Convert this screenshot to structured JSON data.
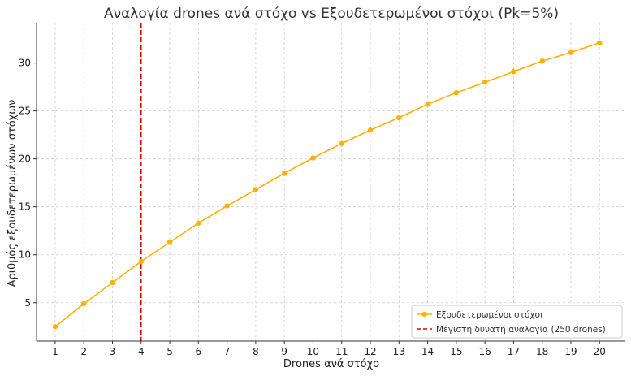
{
  "chart_data": {
    "type": "line",
    "title": "Αναλογία drones ανά στόχο vs Εξουδετερωμένοι στόχοι (Pk=5%)",
    "xlabel": "Drones ανά στόχο",
    "ylabel": "Αριθμός εξουδετερωμένων στόχων",
    "x": [
      1,
      2,
      3,
      4,
      5,
      6,
      7,
      8,
      9,
      10,
      11,
      12,
      13,
      14,
      15,
      16,
      17,
      18,
      19,
      20
    ],
    "series": [
      {
        "name": "Εξουδετερωμένοι στόχοι",
        "color": "#FFB000",
        "values": [
          2.5,
          4.9,
          7.1,
          9.3,
          11.3,
          13.3,
          15.1,
          16.8,
          18.5,
          20.1,
          21.6,
          23.0,
          24.3,
          25.7,
          26.9,
          28.0,
          29.1,
          30.2,
          31.1,
          32.1
        ]
      }
    ],
    "reference_line": {
      "name": "Μέγιστη δυνατή αναλογία (250 drones)",
      "x": 4,
      "color": "#E60000"
    },
    "xlim": [
      0.35,
      20.9
    ],
    "ylim": [
      1.0,
      34.2
    ],
    "xticks": [
      1,
      2,
      3,
      4,
      5,
      6,
      7,
      8,
      9,
      10,
      11,
      12,
      13,
      14,
      15,
      16,
      17,
      18,
      19,
      20
    ],
    "yticks": [
      5,
      10,
      15,
      20,
      25,
      30
    ],
    "grid": true,
    "legend_position": "bottom-right"
  }
}
